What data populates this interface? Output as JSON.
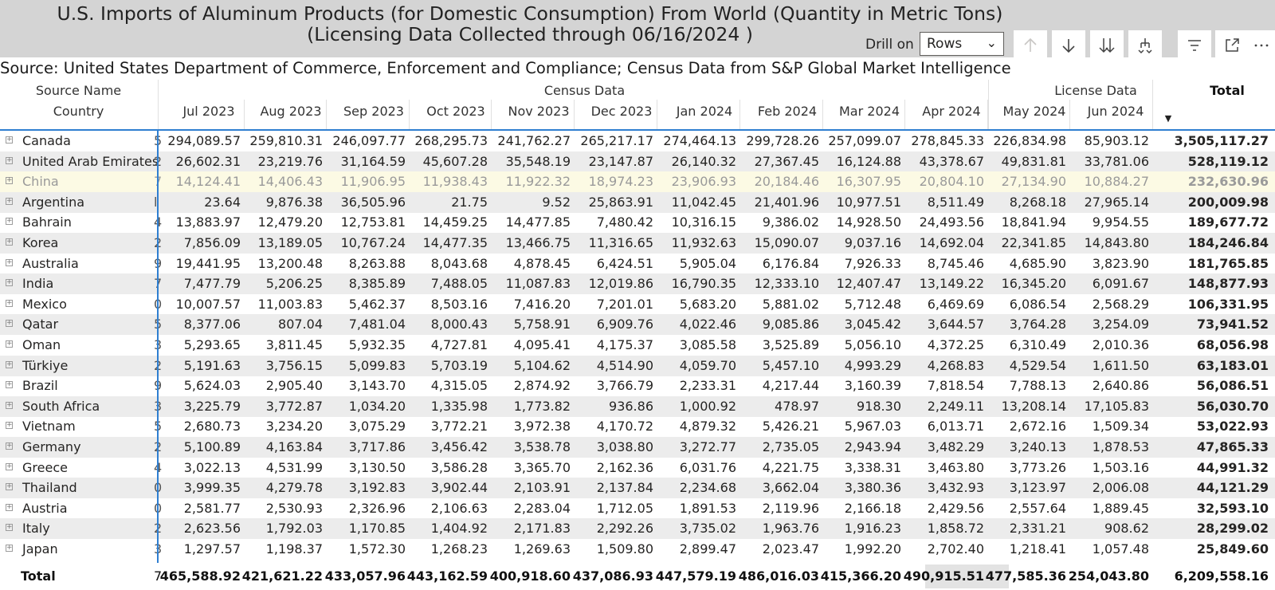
{
  "title_line1": "U.S. Imports of Aluminum Products (for Domestic Consumption) From World  (Quantity in Metric Tons)",
  "title_line2": "(Licensing Data Collected through 06/16/2024 )",
  "drill_label": "Drill on",
  "drill_value": "Rows",
  "icons": [
    "arrow-up-icon",
    "arrow-down-icon",
    "double-arrow-down-icon",
    "expand-hierarchy-icon",
    "filter-icon",
    "focus-mode-icon",
    "more-options-icon"
  ],
  "source_text": "Source: United States Department of Commerce, Enforcement and Compliance; Census Data from S&P Global Market Intelligence",
  "header": {
    "source_name": "Source Name",
    "country": "Country",
    "census_group": "Census Data",
    "license_group": "License Data",
    "total": "Total",
    "sort_indicator": "▼",
    "months": [
      "Jul 2023",
      "Aug 2023",
      "Sep 2023",
      "Oct 2023",
      "Nov 2023",
      "Dec 2023",
      "Jan 2024",
      "Feb 2024",
      "Mar 2024",
      "Apr 2024",
      "May 2024",
      "Jun 2024"
    ]
  },
  "rows": [
    {
      "country": "Canada",
      "cut": "5",
      "values": [
        "294,089.57",
        "259,810.31",
        "246,097.77",
        "268,295.73",
        "241,762.27",
        "265,217.17",
        "274,464.13",
        "299,728.26",
        "257,099.07",
        "278,845.33",
        "226,834.98",
        "85,903.12"
      ],
      "total": "3,505,117.27"
    },
    {
      "country": "United Arab Emirates",
      "cut": "2",
      "values": [
        "26,602.31",
        "23,219.76",
        "31,164.59",
        "45,607.28",
        "35,548.19",
        "23,147.87",
        "26,140.32",
        "27,367.45",
        "16,124.88",
        "43,378.67",
        "49,831.81",
        "33,781.06"
      ],
      "total": "528,119.12"
    },
    {
      "country": "China",
      "cut": "7",
      "values": [
        "14,124.41",
        "14,406.43",
        "11,906.95",
        "11,938.43",
        "11,922.32",
        "18,974.23",
        "23,906.93",
        "20,184.46",
        "16,307.95",
        "20,804.10",
        "27,134.90",
        "10,884.27"
      ],
      "total": "232,630.96"
    },
    {
      "country": "Argentina",
      "cut": "l",
      "values": [
        "23.64",
        "9,876.38",
        "36,505.96",
        "21.75",
        "9.52",
        "25,863.91",
        "11,042.45",
        "21,401.96",
        "10,977.51",
        "8,511.49",
        "8,268.18",
        "27,965.14"
      ],
      "total": "200,009.98"
    },
    {
      "country": "Bahrain",
      "cut": "4",
      "values": [
        "13,883.97",
        "12,479.20",
        "12,753.81",
        "14,459.25",
        "14,477.85",
        "7,480.42",
        "10,316.15",
        "9,386.02",
        "14,928.50",
        "24,493.56",
        "18,841.94",
        "9,954.55"
      ],
      "total": "189,677.72"
    },
    {
      "country": "Korea",
      "cut": "2",
      "values": [
        "7,856.09",
        "13,189.05",
        "10,767.24",
        "14,477.35",
        "13,466.75",
        "11,316.65",
        "11,932.63",
        "15,090.07",
        "9,037.16",
        "14,692.04",
        "22,341.85",
        "14,843.80"
      ],
      "total": "184,246.84"
    },
    {
      "country": "Australia",
      "cut": "9",
      "values": [
        "19,441.95",
        "13,200.48",
        "8,263.88",
        "8,043.68",
        "4,878.45",
        "6,424.51",
        "5,905.04",
        "6,176.84",
        "7,926.33",
        "8,745.46",
        "4,685.90",
        "3,823.90"
      ],
      "total": "181,765.85"
    },
    {
      "country": "India",
      "cut": "7",
      "values": [
        "7,477.79",
        "5,206.25",
        "8,385.89",
        "7,488.05",
        "11,087.83",
        "12,019.86",
        "16,790.35",
        "12,333.10",
        "12,407.47",
        "13,149.22",
        "16,345.20",
        "6,091.67"
      ],
      "total": "148,877.93"
    },
    {
      "country": "Mexico",
      "cut": "0",
      "values": [
        "10,007.57",
        "11,003.83",
        "5,462.37",
        "8,503.16",
        "7,416.20",
        "7,201.01",
        "5,683.20",
        "5,881.02",
        "5,712.48",
        "6,469.69",
        "6,086.54",
        "2,568.29"
      ],
      "total": "106,331.95"
    },
    {
      "country": "Qatar",
      "cut": "5",
      "values": [
        "8,377.06",
        "807.04",
        "7,481.04",
        "8,000.43",
        "5,758.91",
        "6,909.76",
        "4,022.46",
        "9,085.86",
        "3,045.42",
        "3,644.57",
        "3,764.28",
        "3,254.09"
      ],
      "total": "73,941.52"
    },
    {
      "country": "Oman",
      "cut": "3",
      "values": [
        "5,293.65",
        "3,811.45",
        "5,932.35",
        "4,727.81",
        "4,095.41",
        "4,175.37",
        "3,085.58",
        "3,525.89",
        "5,056.10",
        "4,372.25",
        "6,310.49",
        "2,010.36"
      ],
      "total": "68,056.98"
    },
    {
      "country": "Türkiye",
      "cut": "2",
      "values": [
        "5,191.63",
        "3,756.15",
        "5,099.83",
        "5,703.19",
        "5,104.62",
        "4,514.90",
        "4,059.70",
        "5,457.10",
        "4,993.29",
        "4,268.83",
        "4,529.54",
        "1,611.50"
      ],
      "total": "63,183.01"
    },
    {
      "country": "Brazil",
      "cut": "9",
      "values": [
        "5,624.03",
        "2,905.40",
        "3,143.70",
        "4,315.05",
        "2,874.92",
        "3,766.79",
        "2,233.31",
        "4,217.44",
        "3,160.39",
        "7,818.54",
        "7,788.13",
        "2,640.86"
      ],
      "total": "56,086.51"
    },
    {
      "country": "South Africa",
      "cut": "3",
      "values": [
        "3,225.79",
        "3,772.87",
        "1,034.20",
        "1,335.98",
        "1,773.82",
        "936.86",
        "1,000.92",
        "478.97",
        "918.30",
        "2,249.11",
        "13,208.14",
        "17,105.83"
      ],
      "total": "56,030.70"
    },
    {
      "country": "Vietnam",
      "cut": "5",
      "values": [
        "2,680.73",
        "3,234.20",
        "3,075.29",
        "3,772.21",
        "3,972.38",
        "4,170.72",
        "4,879.32",
        "5,426.21",
        "5,967.03",
        "6,013.71",
        "2,672.16",
        "1,509.34"
      ],
      "total": "53,022.93"
    },
    {
      "country": "Germany",
      "cut": "2",
      "values": [
        "5,100.89",
        "4,163.84",
        "3,717.86",
        "3,456.42",
        "3,538.78",
        "3,038.80",
        "3,272.77",
        "2,735.05",
        "2,943.94",
        "3,482.29",
        "3,240.13",
        "1,878.53"
      ],
      "total": "47,865.33"
    },
    {
      "country": "Greece",
      "cut": "4",
      "values": [
        "3,022.13",
        "4,531.99",
        "3,130.50",
        "3,586.28",
        "3,365.70",
        "2,162.36",
        "6,031.76",
        "4,221.75",
        "3,338.31",
        "3,463.80",
        "3,773.26",
        "1,503.16"
      ],
      "total": "44,991.32"
    },
    {
      "country": "Thailand",
      "cut": "0",
      "values": [
        "3,999.35",
        "4,279.78",
        "3,192.83",
        "3,902.44",
        "2,103.91",
        "2,137.84",
        "2,234.68",
        "3,662.04",
        "3,380.36",
        "3,432.93",
        "3,123.97",
        "2,006.08"
      ],
      "total": "44,121.29"
    },
    {
      "country": "Austria",
      "cut": "0",
      "values": [
        "2,581.77",
        "2,530.93",
        "2,326.96",
        "2,106.63",
        "2,283.04",
        "1,712.05",
        "1,891.53",
        "2,119.96",
        "2,166.18",
        "2,429.56",
        "2,557.64",
        "1,889.45"
      ],
      "total": "32,593.10"
    },
    {
      "country": "Italy",
      "cut": "2",
      "values": [
        "2,623.56",
        "1,792.03",
        "1,170.85",
        "1,404.92",
        "2,171.83",
        "2,292.26",
        "3,735.02",
        "1,963.76",
        "1,916.23",
        "1,858.72",
        "2,331.21",
        "908.62"
      ],
      "total": "28,299.02"
    },
    {
      "country": "Japan",
      "cut": "3",
      "values": [
        "1,297.57",
        "1,198.37",
        "1,572.30",
        "1,268.23",
        "1,269.63",
        "1,509.80",
        "2,899.47",
        "2,023.47",
        "1,992.20",
        "2,702.40",
        "1,218.41",
        "1,057.48"
      ],
      "total": "25,849.60"
    }
  ],
  "totals": {
    "label": "Total",
    "cut": "7",
    "values": [
      "465,588.92",
      "421,621.22",
      "433,057.96",
      "443,162.59",
      "400,918.60",
      "437,086.93",
      "447,579.19",
      "486,016.03",
      "415,366.20",
      "490,915.51",
      "477,585.36",
      "254,043.80"
    ],
    "grand_total": "6,209,558.16"
  }
}
